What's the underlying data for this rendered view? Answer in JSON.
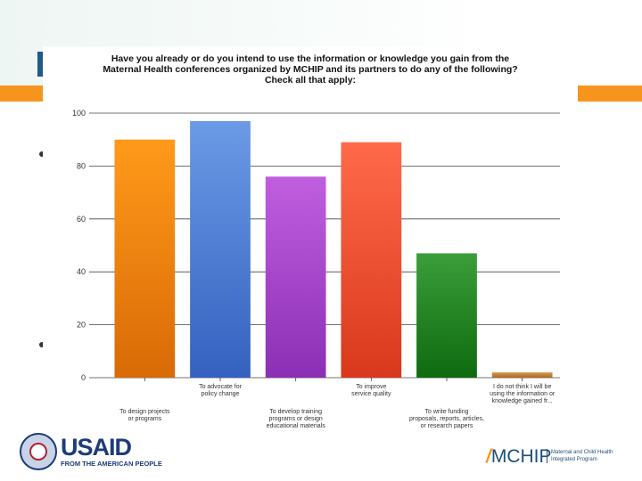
{
  "chart_data": {
    "type": "bar",
    "title": [
      "Have you already or do you intend to use the information or knowledge you gain from the",
      "Maternal Health conferences organized by MCHIP and its partners to do any of the following?",
      "Check all that apply:"
    ],
    "categories": [
      [
        "To design projects",
        "or programs"
      ],
      [
        "To advocate for",
        "policy change"
      ],
      [
        "To develop training",
        "programs or design",
        "educational materials"
      ],
      [
        "To improve",
        "service quality"
      ],
      [
        "To write funding",
        "proposals, reports, articles,",
        "or research papers"
      ],
      [
        "I do not think I will be",
        "using the information or",
        "knowledge gained fr..."
      ]
    ],
    "values": [
      90,
      97,
      76,
      89,
      47,
      2
    ],
    "colors": [
      [
        "#ff9a1a",
        "#d96a06"
      ],
      [
        "#6b9ae6",
        "#3461bf"
      ],
      [
        "#c15ee0",
        "#8b2fb4"
      ],
      [
        "#ff6a4a",
        "#d9381c"
      ],
      [
        "#3a9e3a",
        "#0f6a0f"
      ],
      [
        "#d89a50",
        "#a86a20"
      ]
    ],
    "ylim": [
      0,
      100
    ],
    "yticks": [
      0,
      20,
      40,
      60,
      80,
      100
    ],
    "grid": true,
    "xlabel": "",
    "ylabel": ""
  },
  "logos": {
    "usaid": "USAID",
    "usaid_tagline": "FROM THE AMERICAN PEOPLE",
    "mchip": "MCHIP",
    "mchip_tagline": "Maternal and Child Health Integrated Program"
  }
}
